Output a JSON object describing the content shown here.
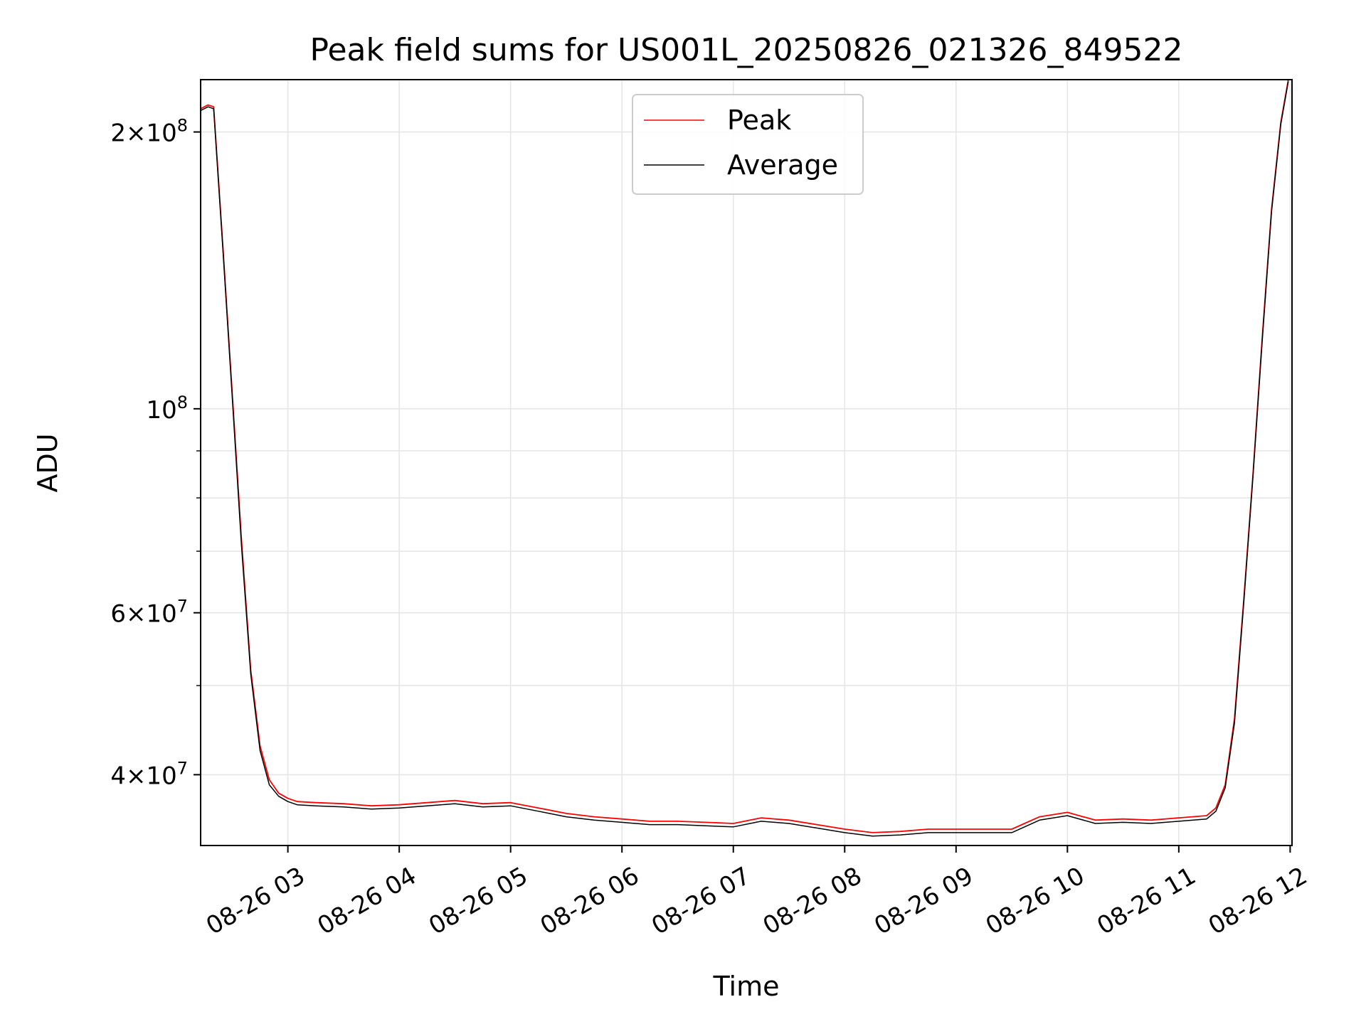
{
  "chart_data": {
    "type": "line",
    "title": "Peak field sums for US001L_20250826_021326_849522",
    "xlabel": "Time",
    "ylabel": "ADU",
    "yscale": "log",
    "grid": true,
    "legend_position": "top-center",
    "xlim": [
      "08-26 02:13",
      "08-26 12:01"
    ],
    "ylim": [
      33500000,
      228000000
    ],
    "x_ticks": [
      "08-26 03",
      "08-26 04",
      "08-26 05",
      "08-26 06",
      "08-26 07",
      "08-26 08",
      "08-26 09",
      "08-26 10",
      "08-26 11",
      "08-26 12"
    ],
    "y_ticks": [
      {
        "value": 40000000,
        "mantissa": "4",
        "exponent": "7"
      },
      {
        "value": 60000000,
        "mantissa": "6",
        "exponent": "7"
      },
      {
        "value": 100000000,
        "mantissa": "",
        "exponent": "8"
      },
      {
        "value": 200000000,
        "mantissa": "2",
        "exponent": "8"
      }
    ],
    "series": [
      {
        "name": "Peak",
        "color": "#ff0000",
        "x": [
          "08-26 02:13",
          "08-26 02:17",
          "08-26 02:20",
          "08-26 02:25",
          "08-26 02:30",
          "08-26 02:35",
          "08-26 02:40",
          "08-26 02:45",
          "08-26 02:50",
          "08-26 02:55",
          "08-26 03:00",
          "08-26 03:05",
          "08-26 03:15",
          "08-26 03:30",
          "08-26 03:45",
          "08-26 04:00",
          "08-26 04:15",
          "08-26 04:30",
          "08-26 04:45",
          "08-26 05:00",
          "08-26 05:15",
          "08-26 05:30",
          "08-26 05:45",
          "08-26 06:00",
          "08-26 06:15",
          "08-26 06:30",
          "08-26 06:45",
          "08-26 07:00",
          "08-26 07:15",
          "08-26 07:30",
          "08-26 07:45",
          "08-26 08:00",
          "08-26 08:15",
          "08-26 08:30",
          "08-26 08:45",
          "08-26 09:00",
          "08-26 09:15",
          "08-26 09:30",
          "08-26 09:45",
          "08-26 10:00",
          "08-26 10:15",
          "08-26 10:30",
          "08-26 10:45",
          "08-26 11:00",
          "08-26 11:15",
          "08-26 11:20",
          "08-26 11:25",
          "08-26 11:30",
          "08-26 11:35",
          "08-26 11:40",
          "08-26 11:45",
          "08-26 11:50",
          "08-26 11:55",
          "08-26 11:59"
        ],
        "y": [
          212000000,
          214000000,
          213000000,
          150000000,
          104000000,
          72000000,
          52000000,
          43000000,
          39500000,
          38200000,
          37700000,
          37400000,
          37300000,
          37200000,
          37000000,
          37100000,
          37300000,
          37500000,
          37200000,
          37300000,
          36800000,
          36300000,
          36000000,
          35800000,
          35600000,
          35600000,
          35500000,
          35400000,
          35900000,
          35700000,
          35300000,
          34900000,
          34600000,
          34700000,
          34900000,
          34900000,
          34900000,
          34900000,
          36000000,
          36400000,
          35700000,
          35800000,
          35700000,
          35900000,
          36100000,
          36800000,
          39000000,
          46000000,
          62000000,
          85000000,
          120000000,
          165000000,
          205000000,
          228000000
        ]
      },
      {
        "name": "Average",
        "color": "#000000",
        "x": [
          "08-26 02:13",
          "08-26 02:17",
          "08-26 02:20",
          "08-26 02:25",
          "08-26 02:30",
          "08-26 02:35",
          "08-26 02:40",
          "08-26 02:45",
          "08-26 02:50",
          "08-26 02:55",
          "08-26 03:00",
          "08-26 03:05",
          "08-26 03:15",
          "08-26 03:30",
          "08-26 03:45",
          "08-26 04:00",
          "08-26 04:15",
          "08-26 04:30",
          "08-26 04:45",
          "08-26 05:00",
          "08-26 05:15",
          "08-26 05:30",
          "08-26 05:45",
          "08-26 06:00",
          "08-26 06:15",
          "08-26 06:30",
          "08-26 06:45",
          "08-26 07:00",
          "08-26 07:15",
          "08-26 07:30",
          "08-26 07:45",
          "08-26 08:00",
          "08-26 08:15",
          "08-26 08:30",
          "08-26 08:45",
          "08-26 09:00",
          "08-26 09:15",
          "08-26 09:30",
          "08-26 09:45",
          "08-26 10:00",
          "08-26 10:15",
          "08-26 10:30",
          "08-26 10:45",
          "08-26 11:00",
          "08-26 11:15",
          "08-26 11:20",
          "08-26 11:25",
          "08-26 11:30",
          "08-26 11:35",
          "08-26 11:40",
          "08-26 11:45",
          "08-26 11:50",
          "08-26 11:55",
          "08-26 11:59"
        ],
        "y": [
          211000000,
          213000000,
          212000000,
          149000000,
          103000000,
          71000000,
          51500000,
          42500000,
          39000000,
          37900000,
          37400000,
          37100000,
          37000000,
          36900000,
          36700000,
          36800000,
          37000000,
          37200000,
          36900000,
          37000000,
          36500000,
          36000000,
          35700000,
          35500000,
          35300000,
          35300000,
          35200000,
          35100000,
          35600000,
          35400000,
          35000000,
          34600000,
          34300000,
          34400000,
          34600000,
          34600000,
          34600000,
          34600000,
          35700000,
          36100000,
          35400000,
          35500000,
          35400000,
          35600000,
          35800000,
          36500000,
          38700000,
          45500000,
          61500000,
          84500000,
          119000000,
          164000000,
          204000000,
          227000000
        ]
      }
    ]
  }
}
